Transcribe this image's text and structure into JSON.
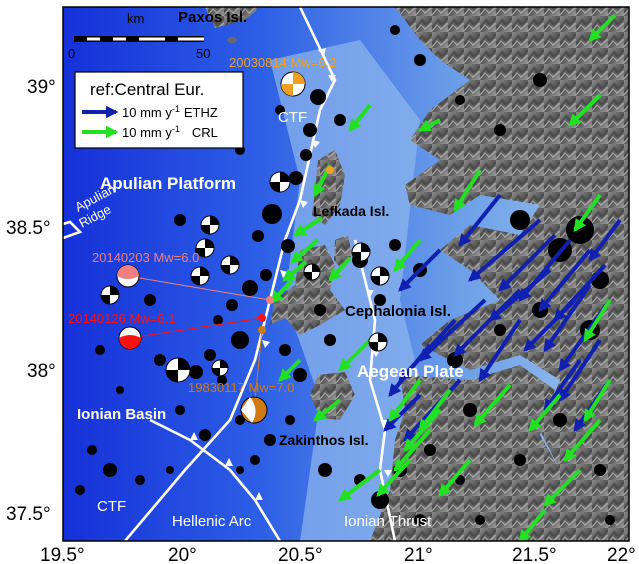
{
  "axes": {
    "x_ticks": [
      "19.5°",
      "20°",
      "20.5°",
      "21°",
      "21.5°",
      "22°"
    ],
    "y_ticks": [
      "39°",
      "38.5°",
      "38°",
      "37.5°"
    ]
  },
  "scale_bar": {
    "unit": "km",
    "start": "0",
    "end": "50"
  },
  "legend": {
    "title": "ref:Central Eur.",
    "items": [
      {
        "rate": "10 mm y",
        "sup": "-1",
        "source": "ETHZ",
        "color": "#1020b0"
      },
      {
        "rate": "10 mm y",
        "sup": "-1",
        "source": "CRL",
        "color": "#22e022"
      }
    ]
  },
  "places": {
    "paxos": "Paxos Isl.",
    "apulian_platform": "Apulian Platform",
    "lefkada": "Lefkada Isl.",
    "cephalonia": "Cephalonia Isl.",
    "aegean_plate": "Aegean Plate",
    "ionian_basin": "Ionian Basin",
    "zakinthos": "Zakinthos Isl.",
    "apulian_ridge_1": "Apulian",
    "apulian_ridge_2": "Ridge"
  },
  "faults": {
    "ctf_north": "CTF",
    "ctf_south": "CTF",
    "hellenic_arc": "Hellenic Arc",
    "ionian_thrust": "Ionian Thrust"
  },
  "earthquakes": [
    {
      "label": "20030814 Mw=6.2",
      "color": "#f0a020"
    },
    {
      "label": "20140203 Mw=6.0",
      "color": "#f08080"
    },
    {
      "label": "20140126 Mw=6.1",
      "color": "#ff1010"
    },
    {
      "label": "19830117 Mw=7.0",
      "color": "#d07a10"
    }
  ],
  "colors": {
    "sea_deep": "#1530d8",
    "sea_shallow": "#9fc4ee",
    "fault": "#ffffff"
  }
}
